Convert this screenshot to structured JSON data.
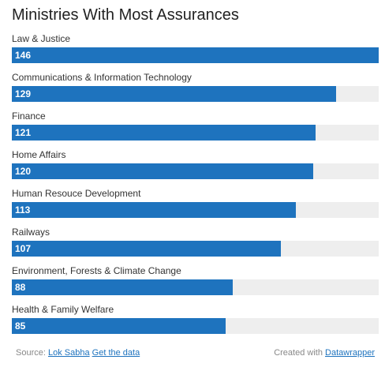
{
  "colors": {
    "bar": "#1e73be",
    "track": "#eeeeee",
    "link": "#1e73be"
  },
  "chart_data": {
    "type": "bar",
    "orientation": "horizontal",
    "title": "Ministries With Most Assurances",
    "xlabel": "",
    "ylabel": "",
    "xlim": [
      0,
      146
    ],
    "grid": false,
    "categories": [
      "Law & Justice",
      "Communications & Information Technology",
      "Finance",
      "Home Affairs",
      "Human Resouce Development",
      "Railways",
      "Environment, Forests & Climate Change",
      "Health & Family Welfare"
    ],
    "values": [
      146,
      129,
      121,
      120,
      113,
      107,
      88,
      85
    ]
  },
  "footer": {
    "source_prefix": "Source:",
    "source_link": "Lok Sabha",
    "data_link": "Get the data",
    "created_prefix": "Created with",
    "created_link": "Datawrapper"
  }
}
